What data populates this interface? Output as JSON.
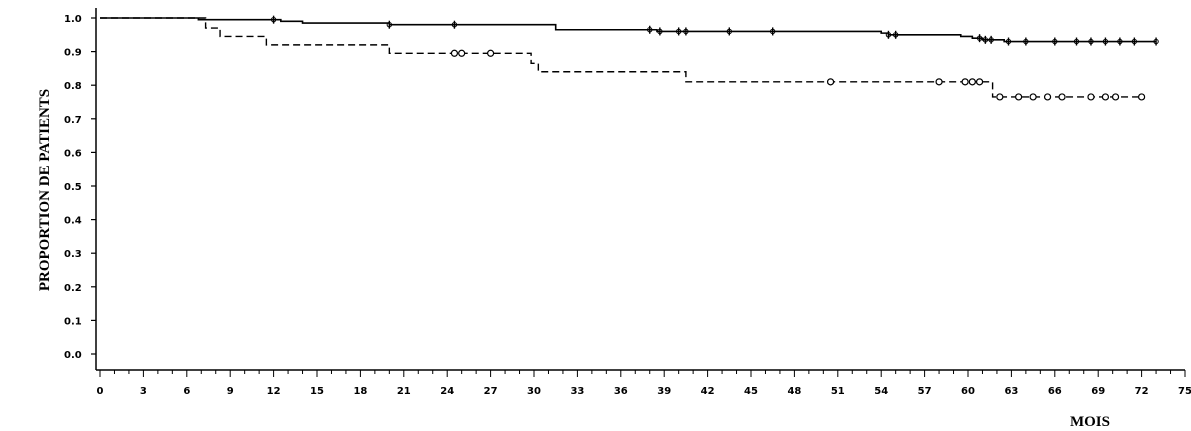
{
  "chart_data": {
    "type": "line",
    "title": "",
    "xlabel": "MOIS",
    "ylabel": "PROPORTION DE PATIENTS",
    "xlim": [
      0,
      75
    ],
    "ylim": [
      0,
      1.0
    ],
    "x_ticks": [
      0,
      3,
      6,
      9,
      12,
      15,
      18,
      21,
      24,
      27,
      30,
      33,
      36,
      39,
      42,
      45,
      48,
      51,
      54,
      57,
      60,
      63,
      66,
      69,
      72,
      75
    ],
    "x_tick_labels": [
      "0",
      "3",
      "6",
      "9",
      "12",
      "15",
      "18",
      "21",
      "24",
      "27",
      "30",
      "33",
      "36",
      "39",
      "42",
      "45",
      "48",
      "51",
      "54",
      "57",
      "60",
      "63",
      "66",
      "69",
      "72",
      "75"
    ],
    "y_ticks": [
      0,
      0.1,
      0.2,
      0.3,
      0.4,
      0.5,
      0.6,
      0.7,
      0.8,
      0.9,
      1.0
    ],
    "y_tick_labels": [
      "0.0",
      "0.1",
      "0.2",
      "0.3",
      "0.4",
      "0.5",
      "0.6",
      "0.7",
      "0.8",
      "0.9",
      "1.0"
    ],
    "grid": false,
    "legend": "none",
    "colors": {
      "line": "#000000",
      "background": "#ffffff"
    },
    "series": [
      {
        "style": "solid",
        "step": true,
        "points": [
          [
            0,
            1.0
          ],
          [
            6.8,
            0.995
          ],
          [
            12.5,
            0.99
          ],
          [
            14,
            0.985
          ],
          [
            20,
            0.98
          ],
          [
            31.5,
            0.965
          ],
          [
            38.5,
            0.96
          ],
          [
            54,
            0.955
          ],
          [
            54.5,
            0.95
          ],
          [
            59.5,
            0.945
          ],
          [
            60.3,
            0.94
          ],
          [
            61,
            0.935
          ],
          [
            62.5,
            0.93
          ],
          [
            73,
            0.93
          ]
        ],
        "censored": [
          12,
          20,
          24.5,
          38,
          38.7,
          40,
          40.5,
          43.5,
          46.5,
          54.5,
          55,
          60.8,
          61.2,
          61.6,
          62.8,
          64,
          66,
          67.5,
          68.5,
          69.5,
          70.5,
          71.5,
          73
        ]
      },
      {
        "style": "dashed",
        "step": true,
        "points": [
          [
            0,
            1.0
          ],
          [
            7.3,
            0.97
          ],
          [
            8.3,
            0.945
          ],
          [
            11.5,
            0.92
          ],
          [
            20,
            0.895
          ],
          [
            29.8,
            0.865
          ],
          [
            30.3,
            0.84
          ],
          [
            40.5,
            0.81
          ],
          [
            61.7,
            0.765
          ],
          [
            72,
            0.765
          ]
        ],
        "censored": [
          24.5,
          25,
          27,
          50.5,
          58,
          59.8,
          60.3,
          60.8,
          62.2,
          63.5,
          64.5,
          65.5,
          66.5,
          68.5,
          69.5,
          70.2,
          72
        ]
      }
    ]
  }
}
